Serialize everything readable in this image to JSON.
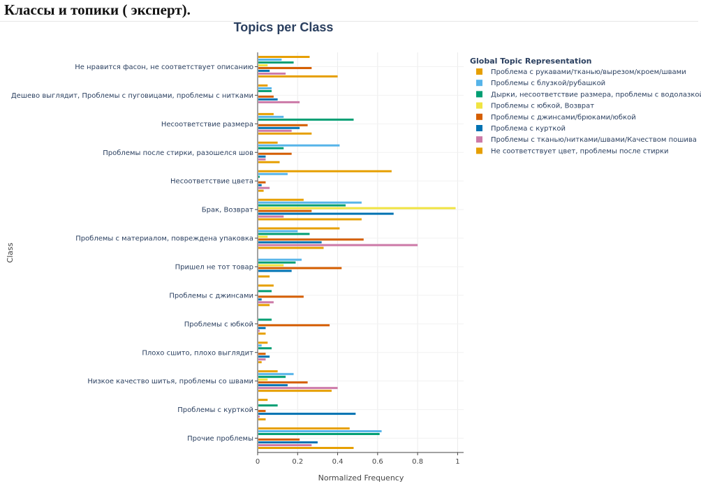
{
  "page": {
    "heading": "Классы и топики ( эксперт)."
  },
  "chart_data": {
    "type": "bar",
    "orientation": "horizontal",
    "title": "Topics per Class",
    "xlabel": "Normalized Frequency",
    "ylabel": "Class",
    "xlim": [
      0,
      1.03
    ],
    "xticks": [
      0,
      0.2,
      0.4,
      0.6,
      0.8,
      1
    ],
    "xtick_labels": [
      "0",
      "0.2",
      "0.4",
      "0.6",
      "0.8",
      "1"
    ],
    "grid": true,
    "legend_title": "Global Topic Representation",
    "legend_position": "right",
    "categories": [
      "Не нравится фасон, не соответствует описанию",
      "Дешево выглядит, Проблемы с пуговицами, проблемы с нитками",
      "Несоответствие размера",
      "Проблемы после стирки, разошелся шов",
      "Несоответствие цвета",
      "Брак, Возврат",
      "Проблемы с материалом, повреждена упаковка",
      "Пришел не тот товар",
      "Проблемы с джинсами",
      "Проблемы с юбкой",
      "Плохо сшито, плохо выглядит",
      "Низкое качество шитья, проблемы со швами",
      "Проблемы с курткой",
      "Прочие проблемы"
    ],
    "series": [
      {
        "name": "Проблема с рукавами/тканью/вырезом/кроем/швами",
        "color": "#E69F00",
        "values": [
          0.26,
          0.05,
          0.08,
          0.1,
          0.67,
          0.23,
          0.41,
          0.0,
          0.08,
          0.0,
          0.05,
          0.1,
          0.05,
          0.46
        ]
      },
      {
        "name": "Проблемы с блузкой/рубашкой",
        "color": "#56B4E9",
        "values": [
          0.12,
          0.07,
          0.13,
          0.41,
          0.15,
          0.52,
          0.2,
          0.22,
          0.0,
          0.0,
          0.02,
          0.18,
          0.0,
          0.62
        ]
      },
      {
        "name": "Дырки, несоответствие размера, проблемы с водолазкой",
        "color": "#009E73",
        "values": [
          0.18,
          0.07,
          0.48,
          0.13,
          0.01,
          0.44,
          0.26,
          0.19,
          0.07,
          0.07,
          0.07,
          0.14,
          0.1,
          0.61
        ]
      },
      {
        "name": "Проблемы с юбкой, Возврат",
        "color": "#F0E442",
        "values": [
          0.05,
          0.0,
          0.0,
          0.0,
          0.0,
          0.99,
          0.05,
          0.13,
          0.0,
          0.0,
          0.0,
          0.05,
          0.0,
          0.0
        ]
      },
      {
        "name": "Проблемы с джинсами/брюками/юбкой",
        "color": "#D55E00",
        "values": [
          0.27,
          0.08,
          0.25,
          0.17,
          0.04,
          0.27,
          0.53,
          0.42,
          0.23,
          0.36,
          0.04,
          0.25,
          0.04,
          0.21
        ]
      },
      {
        "name": "Проблема с курткой",
        "color": "#0072B2",
        "values": [
          0.06,
          0.1,
          0.21,
          0.04,
          0.02,
          0.68,
          0.32,
          0.17,
          0.02,
          0.04,
          0.06,
          0.15,
          0.49,
          0.3
        ]
      },
      {
        "name": "Проблемы с тканью/нитками/швами/Качеством пошива",
        "color": "#CC79A7",
        "values": [
          0.14,
          0.21,
          0.17,
          0.04,
          0.06,
          0.13,
          0.8,
          0.0,
          0.08,
          0.01,
          0.04,
          0.4,
          0.01,
          0.27
        ]
      },
      {
        "name": "Не соответствует цвет, проблемы после стирки",
        "color": "#E69F00",
        "values": [
          0.4,
          0.0,
          0.27,
          0.11,
          0.03,
          0.52,
          0.33,
          0.06,
          0.06,
          0.04,
          0.02,
          0.37,
          0.04,
          0.48
        ]
      }
    ]
  }
}
